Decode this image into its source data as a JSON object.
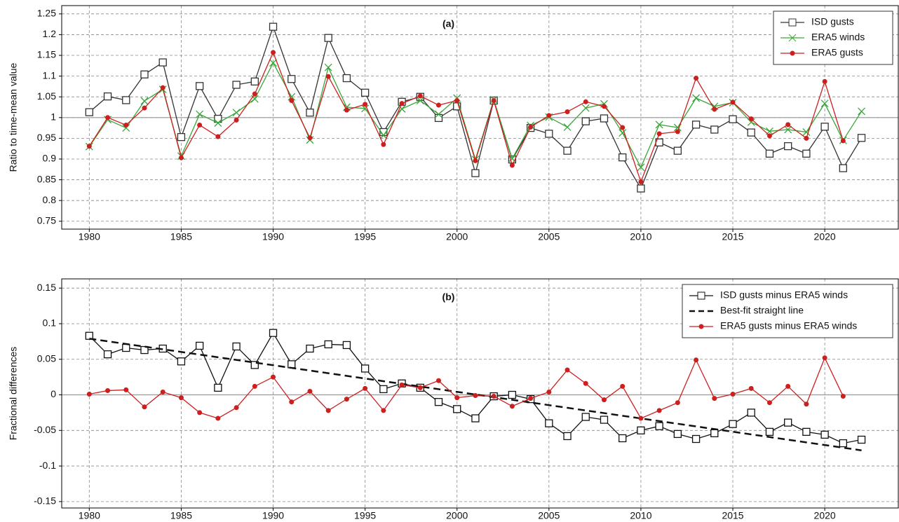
{
  "chart_data": [
    {
      "type": "line",
      "title": "(a)",
      "y_label": "Ratio to time-mean value",
      "x": [
        1980,
        1981,
        1982,
        1983,
        1984,
        1985,
        1986,
        1987,
        1988,
        1989,
        1990,
        1991,
        1992,
        1993,
        1994,
        1995,
        1996,
        1997,
        1998,
        1999,
        2000,
        2001,
        2002,
        2003,
        2004,
        2005,
        2006,
        2007,
        2008,
        2009,
        2010,
        2011,
        2012,
        2013,
        2014,
        2015,
        2016,
        2017,
        2018,
        2019,
        2020,
        2021,
        2022
      ],
      "series": [
        {
          "name": "ISD gusts",
          "color": "#333333",
          "marker": "square",
          "values": [
            1.013,
            1.051,
            1.042,
            1.104,
            1.133,
            0.953,
            1.076,
            0.997,
            1.079,
            1.087,
            1.219,
            1.093,
            1.012,
            1.192,
            1.095,
            1.06,
            0.965,
            1.038,
            1.05,
            0.999,
            1.027,
            0.866,
            1.041,
            0.899,
            0.975,
            0.961,
            0.92,
            0.991,
            0.998,
            0.904,
            0.829,
            0.94,
            0.92,
            0.983,
            0.971,
            0.996,
            0.964,
            0.913,
            0.931,
            0.913,
            0.978,
            0.878,
            0.951
          ]
        },
        {
          "name": "ERA5 winds",
          "color": "#3aa63a",
          "marker": "x",
          "values": [
            0.93,
            0.995,
            0.975,
            1.04,
            1.068,
            0.907,
            1.008,
            0.987,
            1.012,
            1.045,
            1.132,
            1.05,
            0.946,
            1.121,
            1.025,
            1.022,
            0.957,
            1.021,
            1.041,
            1.008,
            1.047,
            0.899,
            1.043,
            0.901,
            0.981,
            1.001,
            0.977,
            1.023,
            1.033,
            0.963,
            0.88,
            0.983,
            0.976,
            1.047,
            1.027,
            1.036,
            0.989,
            0.967,
            0.971,
            0.965,
            1.034,
            0.945,
            1.015
          ]
        },
        {
          "name": "ERA5 gusts",
          "color": "#cc1f1f",
          "marker": "circle",
          "values": [
            0.931,
            1.0,
            0.982,
            1.023,
            1.072,
            0.903,
            0.982,
            0.954,
            0.994,
            1.057,
            1.157,
            1.041,
            0.951,
            1.099,
            1.018,
            1.032,
            0.935,
            1.034,
            1.052,
            1.03,
            1.041,
            0.896,
            1.041,
            0.885,
            0.977,
            1.005,
            1.014,
            1.038,
            1.027,
            0.976,
            0.845,
            0.961,
            0.966,
            1.095,
            1.02,
            1.037,
            0.997,
            0.956,
            0.983,
            0.95,
            1.087,
            0.944,
            null
          ]
        }
      ],
      "xlim": [
        1978.5,
        2024
      ],
      "xticks": [
        1980,
        1985,
        1990,
        1995,
        2000,
        2005,
        2010,
        2015,
        2020
      ],
      "ylim": [
        0.731,
        1.27
      ],
      "yticks": [
        0.75,
        0.8,
        0.85,
        0.9,
        0.95,
        1,
        1.05,
        1.1,
        1.15,
        1.2,
        1.25
      ],
      "reference_line": 1,
      "grid": true,
      "legend": "upper right"
    },
    {
      "type": "line",
      "title": "(b)",
      "y_label": "Fractional differences",
      "x": [
        1980,
        1981,
        1982,
        1983,
        1984,
        1985,
        1986,
        1987,
        1988,
        1989,
        1990,
        1991,
        1992,
        1993,
        1994,
        1995,
        1996,
        1997,
        1998,
        1999,
        2000,
        2001,
        2002,
        2003,
        2004,
        2005,
        2006,
        2007,
        2008,
        2009,
        2010,
        2011,
        2012,
        2013,
        2014,
        2015,
        2016,
        2017,
        2018,
        2019,
        2020,
        2021,
        2022
      ],
      "series": [
        {
          "name": "ISD gusts minus ERA5 winds",
          "color": "#111111",
          "marker": "square",
          "values": [
            0.083,
            0.057,
            0.066,
            0.063,
            0.065,
            0.047,
            0.069,
            0.01,
            0.068,
            0.042,
            0.087,
            0.043,
            0.065,
            0.071,
            0.07,
            0.037,
            0.008,
            0.016,
            0.01,
            -0.01,
            -0.02,
            -0.033,
            -0.002,
            0.0,
            -0.006,
            -0.04,
            -0.058,
            -0.031,
            -0.035,
            -0.061,
            -0.05,
            -0.044,
            -0.055,
            -0.062,
            -0.054,
            -0.041,
            -0.025,
            -0.052,
            -0.039,
            -0.052,
            -0.056,
            -0.068,
            -0.063
          ]
        },
        {
          "name": "Best-fit straight line",
          "color": "#111111",
          "dashed": true,
          "x": [
            1980,
            2022
          ],
          "values": [
            0.079,
            -0.078
          ]
        },
        {
          "name": "ERA5 gusts minus ERA5 winds",
          "color": "#cc1f1f",
          "marker": "circle",
          "values": [
            0.001,
            0.006,
            0.007,
            -0.017,
            0.004,
            -0.004,
            -0.025,
            -0.033,
            -0.018,
            0.012,
            0.025,
            -0.01,
            0.005,
            -0.022,
            -0.006,
            0.009,
            -0.022,
            0.014,
            0.01,
            0.02,
            -0.004,
            -0.001,
            -0.002,
            -0.016,
            -0.005,
            0.004,
            0.035,
            0.016,
            -0.007,
            0.012,
            -0.033,
            -0.022,
            -0.011,
            0.049,
            -0.005,
            0.001,
            0.009,
            -0.011,
            0.012,
            -0.013,
            0.052,
            -0.002,
            null
          ]
        }
      ],
      "xlim": [
        1978.5,
        2024
      ],
      "xticks": [
        1980,
        1985,
        1990,
        1995,
        2000,
        2005,
        2010,
        2015,
        2020
      ],
      "ylim": [
        -0.159,
        0.163
      ],
      "yticks": [
        -0.15,
        -0.1,
        -0.05,
        0,
        0.05,
        0.1,
        0.15
      ],
      "reference_line": 0,
      "grid": true,
      "legend": "upper right"
    }
  ]
}
